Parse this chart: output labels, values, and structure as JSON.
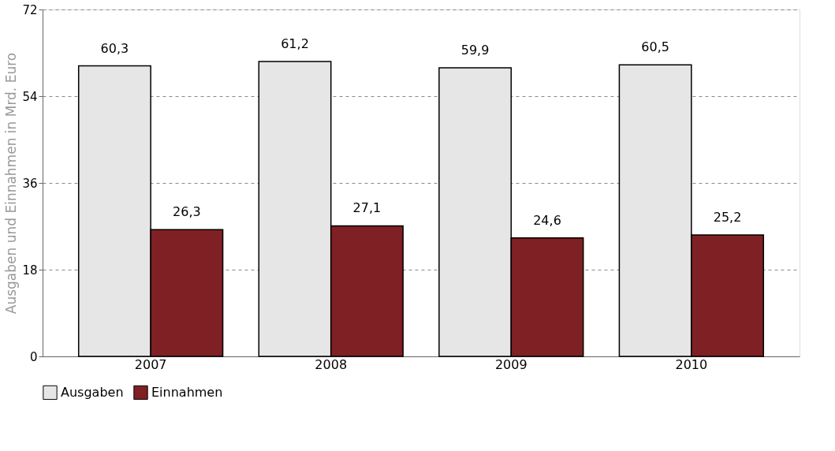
{
  "chart_data": {
    "type": "bar",
    "ylabel": "Ausgaben und Einnahmen in Mrd. Euro",
    "categories": [
      "2007",
      "2008",
      "2009",
      "2010"
    ],
    "series": [
      {
        "name": "Ausgaben",
        "color": "#e6e6e6",
        "values": [
          60.3,
          61.2,
          59.9,
          60.5
        ],
        "value_labels": [
          "60,3",
          "61,2",
          "59,9",
          "60,5"
        ]
      },
      {
        "name": "Einnahmen",
        "color": "#7f2024",
        "values": [
          26.3,
          27.1,
          24.6,
          25.2
        ],
        "value_labels": [
          "26,3",
          "27,1",
          "24,6",
          "25,2"
        ]
      }
    ],
    "ylim": [
      0,
      72
    ],
    "yticks": [
      0,
      18,
      36,
      54,
      72
    ],
    "grid": "y",
    "legend": "bottom left"
  }
}
